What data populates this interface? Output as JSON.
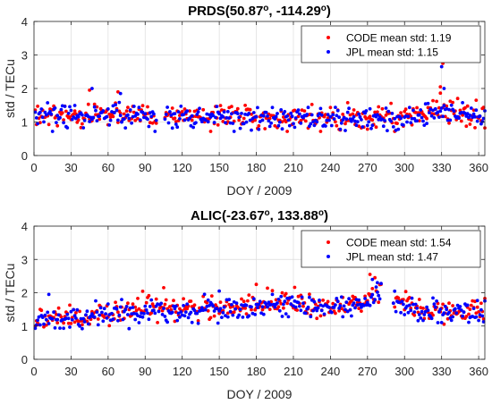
{
  "chart_data": [
    {
      "type": "scatter",
      "title": "PRDS(50.87°, -114.29°)",
      "title_parts": [
        {
          "text": "PRDS(50.87",
          "sup": false
        },
        {
          "text": "o",
          "sup": true
        },
        {
          "text": ", -114.29",
          "sup": false
        },
        {
          "text": "o",
          "sup": true
        },
        {
          "text": ")",
          "sup": false
        }
      ],
      "xlabel": "DOY / 2009",
      "ylabel": "std / TECu",
      "xlim": [
        0,
        365
      ],
      "ylim": [
        0,
        4
      ],
      "xticks": [
        0,
        30,
        60,
        90,
        120,
        150,
        180,
        210,
        240,
        270,
        300,
        330,
        360
      ],
      "yticks": [
        0,
        1,
        2,
        3,
        4
      ],
      "grid": true,
      "legend_position": "top-right",
      "series": [
        {
          "name": "CODE mean std: 1.19",
          "color": "#ff0000",
          "mean": 1.19,
          "gap": [
            100,
            105
          ],
          "trend": [
            [
              0,
              1.2
            ],
            [
              60,
              1.25
            ],
            [
              100,
              1.2
            ],
            [
              150,
              1.15
            ],
            [
              210,
              1.15
            ],
            [
              270,
              1.12
            ],
            [
              310,
              1.2
            ],
            [
              330,
              1.4
            ],
            [
              365,
              1.2
            ]
          ],
          "spikes": [
            [
              45,
              1.95
            ],
            [
              68,
              1.9
            ],
            [
              329,
              2.05
            ],
            [
              331,
              2.75
            ]
          ]
        },
        {
          "name": "JPL mean std: 1.15",
          "color": "#0000ff",
          "mean": 1.15,
          "gap": [
            100,
            105
          ],
          "trend": [
            [
              0,
              1.15
            ],
            [
              60,
              1.2
            ],
            [
              100,
              1.15
            ],
            [
              150,
              1.12
            ],
            [
              210,
              1.12
            ],
            [
              270,
              1.08
            ],
            [
              310,
              1.15
            ],
            [
              330,
              1.35
            ],
            [
              365,
              1.15
            ]
          ],
          "spikes": [
            [
              47,
              2.0
            ],
            [
              70,
              1.85
            ],
            [
              330,
              2.65
            ],
            [
              332,
              2.0
            ]
          ]
        }
      ]
    },
    {
      "type": "scatter",
      "title": "ALIC(-23.67°, 133.88°)",
      "title_parts": [
        {
          "text": "ALIC(-23.67",
          "sup": false
        },
        {
          "text": "o",
          "sup": true
        },
        {
          "text": ", 133.88",
          "sup": false
        },
        {
          "text": "o",
          "sup": true
        },
        {
          "text": ")",
          "sup": false
        }
      ],
      "xlabel": "DOY / 2009",
      "ylabel": "std / TECu",
      "xlim": [
        0,
        365
      ],
      "ylim": [
        0,
        4
      ],
      "xticks": [
        0,
        30,
        60,
        90,
        120,
        150,
        180,
        210,
        240,
        270,
        300,
        330,
        360
      ],
      "yticks": [
        0,
        1,
        2,
        3,
        4
      ],
      "grid": true,
      "legend_position": "top-right",
      "series": [
        {
          "name": "CODE mean std: 1.54",
          "color": "#ff0000",
          "mean": 1.54,
          "gap": [
            282,
            290
          ],
          "trend": [
            [
              0,
              1.2
            ],
            [
              30,
              1.25
            ],
            [
              60,
              1.4
            ],
            [
              90,
              1.55
            ],
            [
              120,
              1.55
            ],
            [
              150,
              1.5
            ],
            [
              180,
              1.65
            ],
            [
              210,
              1.75
            ],
            [
              240,
              1.55
            ],
            [
              270,
              1.75
            ],
            [
              280,
              2.1
            ],
            [
              295,
              1.75
            ],
            [
              310,
              1.45
            ],
            [
              365,
              1.45
            ]
          ],
          "spikes": [
            [
              105,
              2.15
            ],
            [
              180,
              2.25
            ],
            [
              272,
              2.55
            ],
            [
              276,
              2.45
            ]
          ]
        },
        {
          "name": "JPL mean std: 1.47",
          "color": "#0000ff",
          "mean": 1.47,
          "gap": [
            282,
            290
          ],
          "trend": [
            [
              0,
              1.15
            ],
            [
              30,
              1.2
            ],
            [
              60,
              1.35
            ],
            [
              90,
              1.5
            ],
            [
              120,
              1.5
            ],
            [
              150,
              1.45
            ],
            [
              180,
              1.55
            ],
            [
              210,
              1.7
            ],
            [
              240,
              1.5
            ],
            [
              270,
              1.7
            ],
            [
              280,
              2.05
            ],
            [
              295,
              1.7
            ],
            [
              310,
              1.4
            ],
            [
              365,
              1.4
            ]
          ],
          "spikes": [
            [
              12,
              1.95
            ],
            [
              150,
              2.05
            ],
            [
              274,
              2.4
            ],
            [
              278,
              2.3
            ]
          ]
        }
      ]
    }
  ]
}
